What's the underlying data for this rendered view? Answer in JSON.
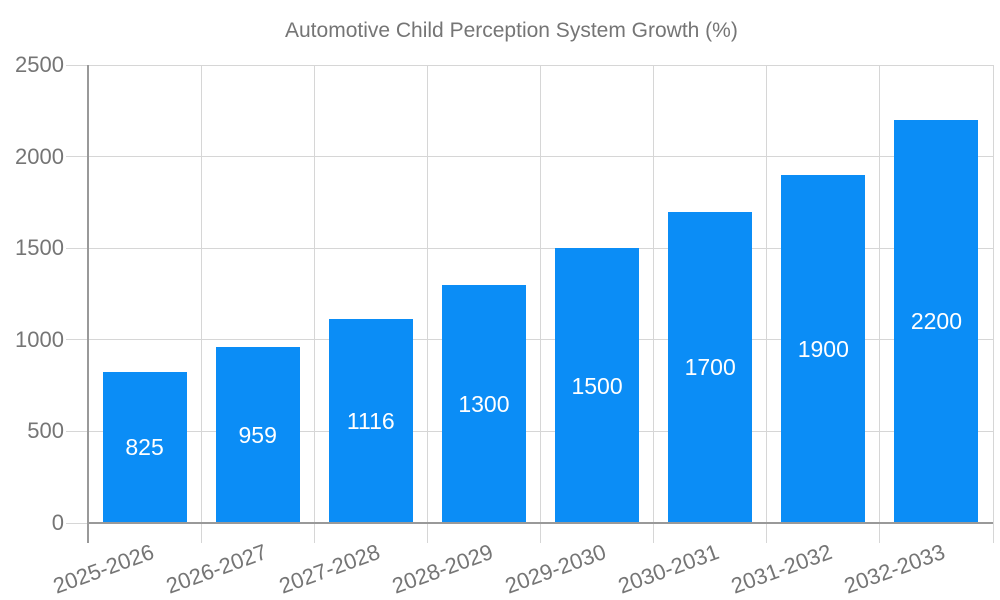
{
  "chart_data": {
    "type": "bar",
    "title": "Automotive Child Perception System Growth (%)",
    "legend_position": "top",
    "categories": [
      "2025-2026",
      "2026-2027",
      "2027-2028",
      "2028-2029",
      "2029-2030",
      "2030-2031",
      "2031-2032",
      "2032-2033"
    ],
    "values": [
      825,
      959,
      1116,
      1300,
      1500,
      1700,
      1900,
      2200
    ],
    "series": [
      {
        "name": "Automotive Child Perception System Growth (%)",
        "values": [
          825,
          959,
          1116,
          1300,
          1500,
          1700,
          1900,
          2200
        ]
      }
    ],
    "xlabel": "",
    "ylabel": "",
    "ylim": [
      0,
      2500
    ],
    "yticks": [
      0,
      500,
      1000,
      1500,
      2000,
      2500
    ],
    "grid": true,
    "x_label_rotation_deg": -20,
    "bar_labels_inside": true,
    "colors": {
      "bar": "#0b8df6",
      "bar_label": "#ffffff",
      "axis_text": "#757575",
      "gridline": "#d6d6d6",
      "axis_line": "#999999",
      "background": "#ffffff"
    }
  }
}
